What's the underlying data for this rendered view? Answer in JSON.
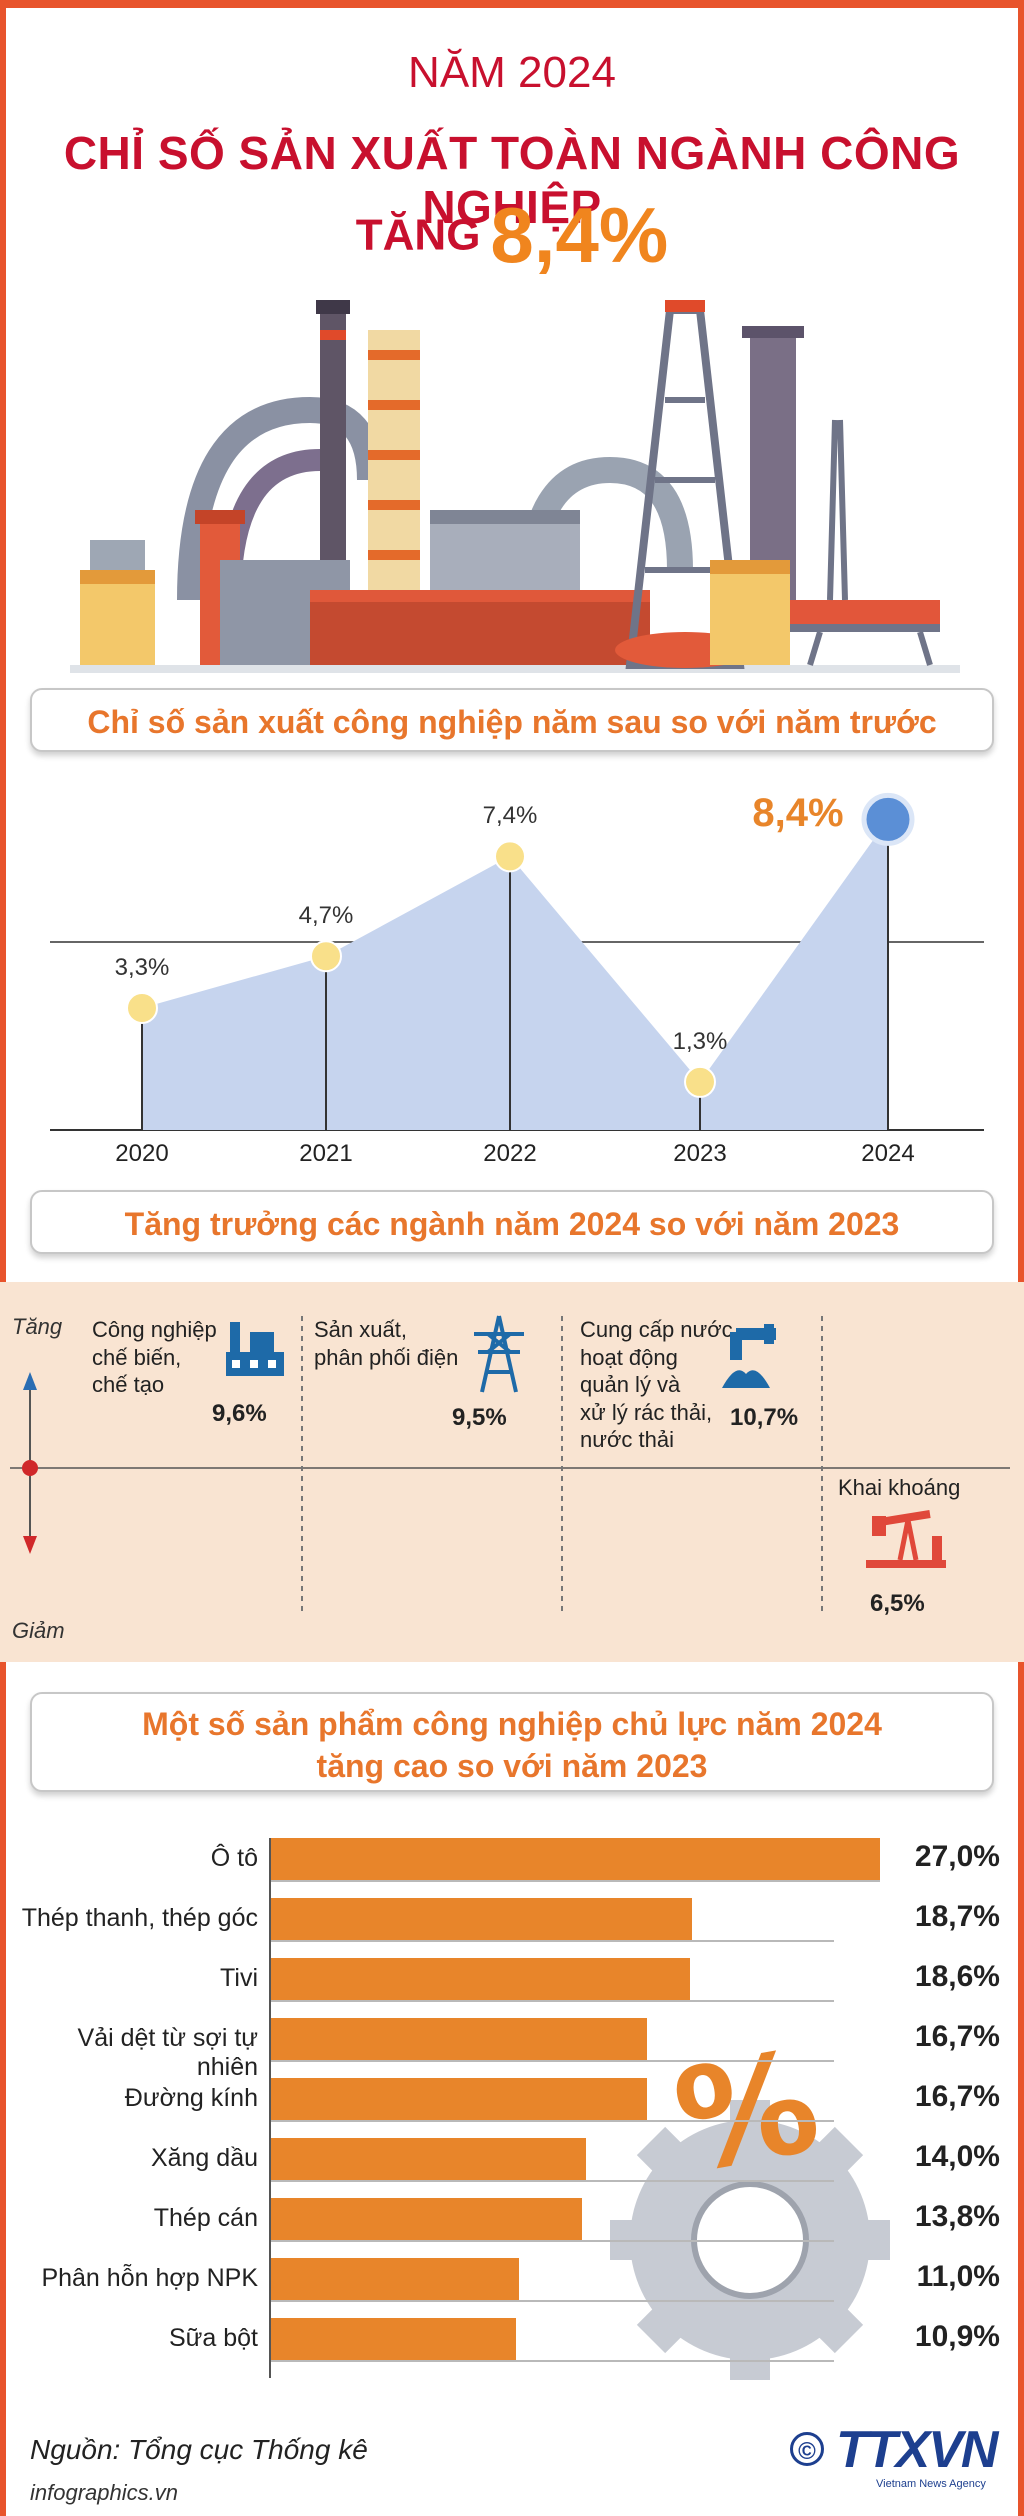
{
  "header": {
    "year_title": "NĂM 2024",
    "title": "CHỈ SỐ SẢN XUẤT TOÀN NGÀNH CÔNG NGHIỆP",
    "rise_word": "TĂNG",
    "rise_value": "8,4%"
  },
  "sections": {
    "index_title": "Chỉ số sản xuất công nghiệp năm sau so với năm trước",
    "sector_title": "Tăng trưởng các ngành năm 2024 so với năm 2023",
    "products_title_1": "Một số sản phẩm công nghiệp chủ lực năm 2024",
    "products_title_2": "tăng cao so với năm 2023"
  },
  "chart_data": [
    {
      "type": "area",
      "title": "Chỉ số sản xuất công nghiệp năm sau so với năm trước",
      "x": [
        "2020",
        "2021",
        "2022",
        "2023",
        "2024"
      ],
      "values": [
        3.3,
        4.7,
        7.4,
        1.3,
        8.4
      ],
      "labels": [
        "3,3%",
        "4,7%",
        "7,4%",
        "1,3%",
        "8,4%"
      ],
      "ylim": [
        0,
        8.6
      ],
      "unit": "%"
    },
    {
      "type": "bar",
      "title": "Tăng trưởng các ngành năm 2024 so với năm 2023",
      "axis_up": "Tăng",
      "axis_down": "Giảm",
      "categories": [
        {
          "name_lines": [
            "Công nghiệp",
            "chế biến,",
            "chế tạo"
          ],
          "icon": "factory-icon",
          "value": 9.6,
          "label": "9,6%",
          "direction": "up"
        },
        {
          "name_lines": [
            "Sản xuất,",
            "phân phối điện"
          ],
          "icon": "power-tower-icon",
          "value": 9.5,
          "label": "9,5%",
          "direction": "up"
        },
        {
          "name_lines": [
            "Cung cấp nước,",
            "hoạt động",
            "quản lý và",
            "xử lý rác thải,",
            "nước thải"
          ],
          "icon": "water-tap-icon",
          "value": 10.7,
          "label": "10,7%",
          "direction": "up"
        },
        {
          "name_lines": [
            "Khai khoáng"
          ],
          "icon": "oil-pump-icon",
          "value": -6.5,
          "label": "6,5%",
          "direction": "down"
        }
      ]
    },
    {
      "type": "bar",
      "orientation": "horizontal",
      "title": "Một số sản phẩm công nghiệp chủ lực năm 2024 tăng cao so với năm 2023",
      "categories": [
        "Ô tô",
        "Thép thanh, thép góc",
        "Tivi",
        "Vải dệt từ sợi tự nhiên",
        "Đường kính",
        "Xăng dầu",
        "Thép cán",
        "Phân hỗn hợp NPK",
        "Sữa bột"
      ],
      "values": [
        27.0,
        18.7,
        18.6,
        16.7,
        16.7,
        14.0,
        13.8,
        11.0,
        10.9
      ],
      "labels": [
        "27,0%",
        "18,7%",
        "18,6%",
        "16,7%",
        "16,7%",
        "14,0%",
        "13,8%",
        "11,0%",
        "10,9%"
      ],
      "xlim": [
        0,
        27.0
      ],
      "unit": "%"
    }
  ],
  "footer": {
    "source": "Nguồn: Tổng cục Thống kê",
    "site": "infographics.vn",
    "copyright_symbol": "©",
    "agency_logo": "TTXVN",
    "agency_sub": "Vietnam News Agency"
  },
  "colors": {
    "frame": "#e8542c",
    "title_red": "#c8102e",
    "accent_orange": "#e8852a",
    "area_fill": "#c6d4ee",
    "point_yellow": "#f9e08a",
    "point_blue": "#5b8fd6"
  }
}
